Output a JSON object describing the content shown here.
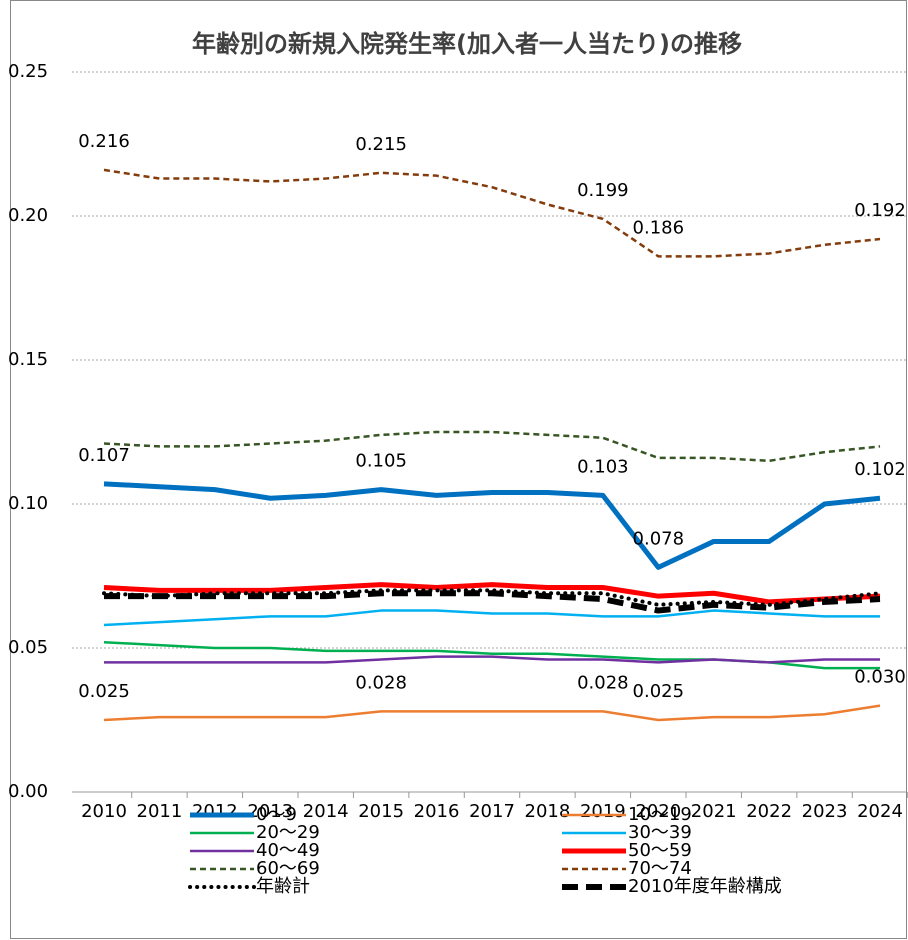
{
  "chart_data": {
    "type": "line",
    "title": "年齢別の新規入院発生率(加入者一人当たり)の推移",
    "categories": [
      "2010",
      "2011",
      "2012",
      "2013",
      "2014",
      "2015",
      "2016",
      "2017",
      "2018",
      "2019",
      "2020",
      "2021",
      "2022",
      "2023",
      "2024"
    ],
    "ylim": [
      0,
      0.25
    ],
    "yticks": [
      {
        "value": 0,
        "label": "0.00"
      },
      {
        "value": 0.05,
        "label": "0.05"
      },
      {
        "value": 0.1,
        "label": "0.10"
      },
      {
        "value": 0.15,
        "label": "0.15"
      },
      {
        "value": 0.2,
        "label": "0.20"
      },
      {
        "value": 0.25,
        "label": "0.25"
      }
    ],
    "grid": true,
    "legend": "bottom",
    "series": [
      {
        "name": "0～9",
        "color": "#0070c0",
        "style": "thick",
        "values": [
          0.107,
          0.106,
          0.105,
          0.102,
          0.103,
          0.105,
          0.103,
          0.104,
          0.104,
          0.103,
          0.078,
          0.087,
          0.087,
          0.1,
          0.102
        ],
        "value_labels": [
          "0.107",
          null,
          null,
          null,
          null,
          "0.105",
          null,
          null,
          null,
          "0.103",
          "0.078",
          null,
          null,
          null,
          "0.102"
        ]
      },
      {
        "name": "10～19",
        "color": "#ed7d31",
        "style": "solid",
        "values": [
          0.025,
          0.026,
          0.026,
          0.026,
          0.026,
          0.028,
          0.028,
          0.028,
          0.028,
          0.028,
          0.025,
          0.026,
          0.026,
          0.027,
          0.03
        ],
        "value_labels": [
          "0.025",
          null,
          null,
          null,
          null,
          "0.028",
          null,
          null,
          null,
          "0.028",
          "0.025",
          null,
          null,
          null,
          "0.030"
        ]
      },
      {
        "name": "20～29",
        "color": "#00b050",
        "style": "solid",
        "values": [
          0.052,
          0.051,
          0.05,
          0.05,
          0.049,
          0.049,
          0.049,
          0.048,
          0.048,
          0.047,
          0.046,
          0.046,
          0.045,
          0.043,
          0.043
        ]
      },
      {
        "name": "30～39",
        "color": "#00b0f0",
        "style": "solid",
        "values": [
          0.058,
          0.059,
          0.06,
          0.061,
          0.061,
          0.063,
          0.063,
          0.062,
          0.062,
          0.061,
          0.061,
          0.063,
          0.062,
          0.061,
          0.061
        ]
      },
      {
        "name": "40～49",
        "color": "#7030a0",
        "style": "solid",
        "values": [
          0.045,
          0.045,
          0.045,
          0.045,
          0.045,
          0.046,
          0.047,
          0.047,
          0.046,
          0.046,
          0.045,
          0.046,
          0.045,
          0.046,
          0.046
        ]
      },
      {
        "name": "50～59",
        "color": "#ff0000",
        "style": "thick",
        "values": [
          0.071,
          0.07,
          0.07,
          0.07,
          0.071,
          0.072,
          0.071,
          0.072,
          0.071,
          0.071,
          0.068,
          0.069,
          0.066,
          0.067,
          0.068
        ]
      },
      {
        "name": "60～69",
        "color": "#375623",
        "style": "dashed",
        "values": [
          0.121,
          0.12,
          0.12,
          0.121,
          0.122,
          0.124,
          0.125,
          0.125,
          0.124,
          0.123,
          0.116,
          0.116,
          0.115,
          0.118,
          0.12
        ]
      },
      {
        "name": "70～74",
        "color": "#843c0c",
        "style": "dashed",
        "values": [
          0.216,
          0.213,
          0.213,
          0.212,
          0.213,
          0.215,
          0.214,
          0.21,
          0.204,
          0.199,
          0.186,
          0.186,
          0.187,
          0.19,
          0.192
        ],
        "value_labels": [
          "0.216",
          null,
          null,
          null,
          null,
          "0.215",
          null,
          null,
          null,
          "0.199",
          "0.186",
          null,
          null,
          null,
          "0.192"
        ]
      },
      {
        "name": "年齢計",
        "color": "#000000",
        "style": "dotted",
        "values": [
          0.069,
          0.068,
          0.069,
          0.069,
          0.069,
          0.07,
          0.07,
          0.07,
          0.069,
          0.069,
          0.065,
          0.066,
          0.065,
          0.067,
          0.069
        ]
      },
      {
        "name": "2010年度年齢構成",
        "color": "#000000",
        "style": "thick-dashed",
        "values": [
          0.068,
          0.068,
          0.068,
          0.068,
          0.068,
          0.069,
          0.069,
          0.069,
          0.068,
          0.067,
          0.063,
          0.065,
          0.064,
          0.066,
          0.067
        ]
      }
    ]
  }
}
